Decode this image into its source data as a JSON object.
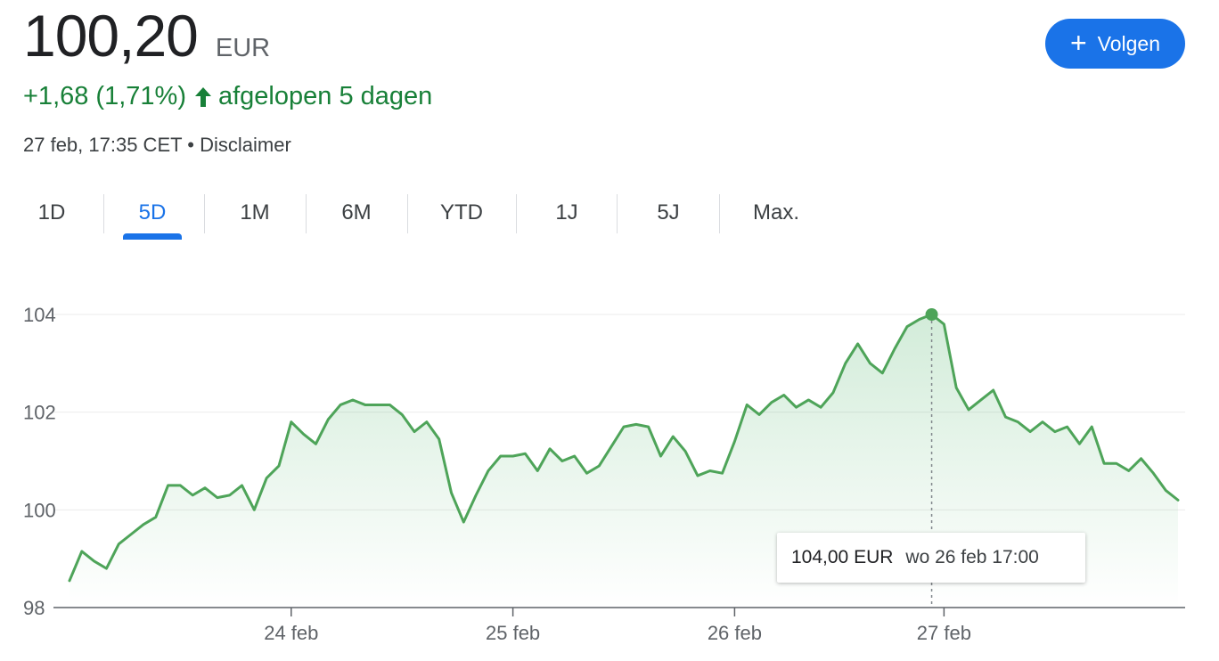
{
  "header": {
    "price": "100,20",
    "currency": "EUR",
    "change": "+1,68 (1,71%)",
    "change_period": "afgelopen 5 dagen",
    "timestamp": "27 feb, 17:35 CET",
    "separator": "•",
    "disclaimer": "Disclaimer",
    "follow_label": "Volgen",
    "positive_color": "#188038",
    "accent_color": "#1a73e8"
  },
  "tabs": [
    {
      "label": "1D",
      "active": false
    },
    {
      "label": "5D",
      "active": true
    },
    {
      "label": "1M",
      "active": false
    },
    {
      "label": "6M",
      "active": false
    },
    {
      "label": "YTD",
      "active": false
    },
    {
      "label": "1J",
      "active": false
    },
    {
      "label": "5J",
      "active": false
    },
    {
      "label": "Max.",
      "active": false
    }
  ],
  "tooltip": {
    "value": "104,00 EUR",
    "datetime": "wo 26 feb 17:00"
  },
  "chart_data": {
    "type": "area",
    "line_color": "#4ea459",
    "fill_color": "#34a853",
    "ylim": [
      98,
      104
    ],
    "yticks": [
      98,
      100,
      102,
      104
    ],
    "ytick_labels": [
      "98",
      "100",
      "102",
      "104"
    ],
    "grid": true,
    "x_tick_labels": [
      "24 feb",
      "25 feb",
      "26 feb",
      "27 feb"
    ],
    "x_tick_index": [
      18,
      36,
      54,
      71
    ],
    "highlight_index": 70,
    "values": [
      98.55,
      99.15,
      98.95,
      98.8,
      99.3,
      99.5,
      99.7,
      99.85,
      100.5,
      100.5,
      100.3,
      100.45,
      100.25,
      100.3,
      100.5,
      100.0,
      100.65,
      100.9,
      101.8,
      101.55,
      101.35,
      101.85,
      102.15,
      102.25,
      102.15,
      102.15,
      102.15,
      101.95,
      101.6,
      101.8,
      101.45,
      100.35,
      99.75,
      100.3,
      100.8,
      101.1,
      101.1,
      101.15,
      100.8,
      101.25,
      101.0,
      101.1,
      100.75,
      100.9,
      101.3,
      101.7,
      101.75,
      101.7,
      101.1,
      101.5,
      101.2,
      100.7,
      100.8,
      100.75,
      101.4,
      102.15,
      101.95,
      102.2,
      102.35,
      102.1,
      102.25,
      102.1,
      102.4,
      103.0,
      103.4,
      103.0,
      102.8,
      103.3,
      103.75,
      103.9,
      104.0,
      103.8,
      102.5,
      102.05,
      102.25,
      102.45,
      101.9,
      101.8,
      101.6,
      101.8,
      101.6,
      101.7,
      101.35,
      101.7,
      100.95,
      100.95,
      100.8,
      101.05,
      100.75,
      100.4,
      100.2
    ]
  }
}
